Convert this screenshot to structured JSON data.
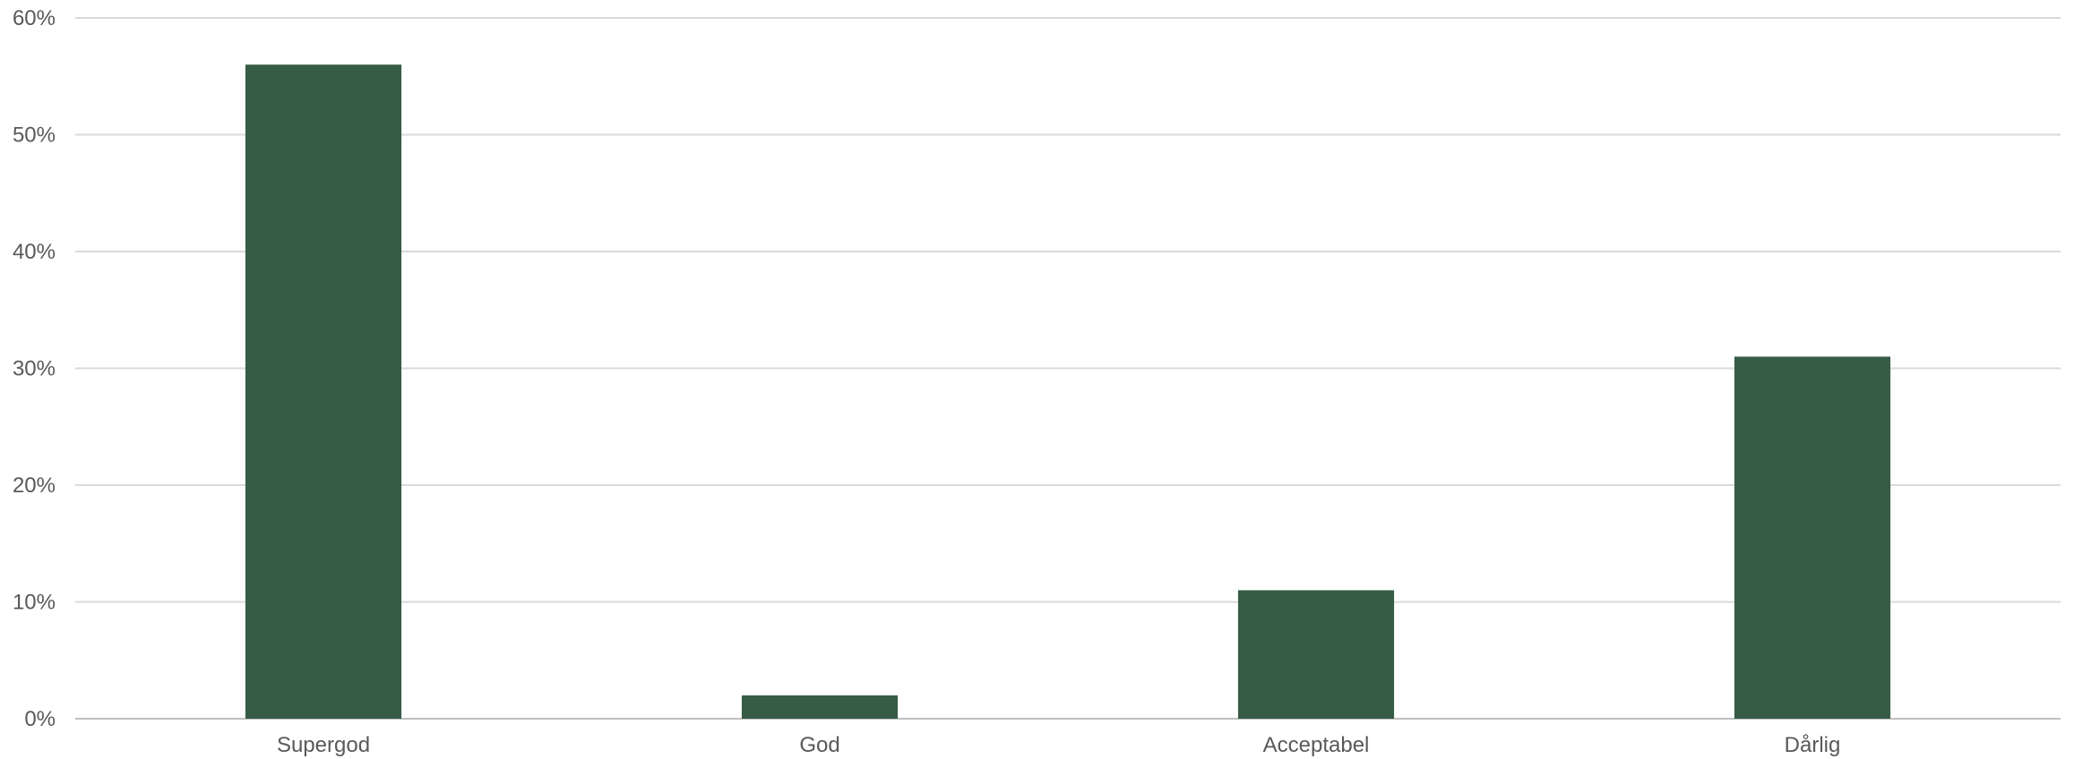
{
  "chart_data": {
    "type": "bar",
    "categories": [
      "Supergod",
      "God",
      "Acceptabel",
      "Dårlig"
    ],
    "values": [
      56,
      2,
      11,
      31
    ],
    "ylim": [
      0,
      60
    ],
    "yticks": [
      0,
      10,
      20,
      30,
      40,
      50,
      60
    ],
    "ytick_labels": [
      "0%",
      "10%",
      "20%",
      "30%",
      "40%",
      "50%",
      "60%"
    ],
    "grid": true,
    "legend": "none",
    "colors": {
      "bar": "#365c46",
      "grid": "#d9d9d9",
      "axis": "#bfbfbf",
      "text": "#595959"
    }
  }
}
